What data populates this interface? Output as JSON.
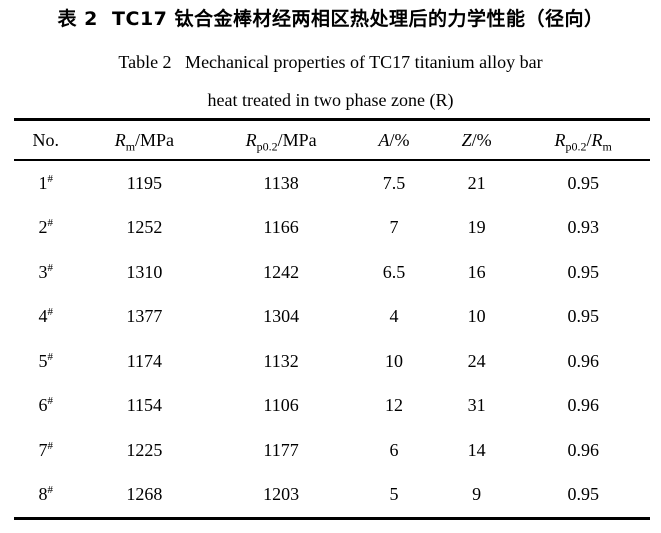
{
  "colors": {
    "background": "#ffffff",
    "text": "#000000",
    "rule": "#000000"
  },
  "caption": {
    "title_zh": "表 2  TC17 钛合金棒材经两相区热处理后的力学性能（径向）",
    "title_en_line1": "Table 2   Mechanical properties of TC17 titanium alloy bar",
    "title_en_line2": "heat treated in two phase zone (R)"
  },
  "table": {
    "header": {
      "no": "No.",
      "rm": {
        "sym": "R",
        "sub": "m",
        "unit": "/MPa"
      },
      "rp02": {
        "sym": "R",
        "sub": "p0.2",
        "unit": "/MPa"
      },
      "a": {
        "sym": "A",
        "unit": "/%"
      },
      "z": {
        "sym": "Z",
        "unit": "/%"
      },
      "ratio": {
        "sym1": "R",
        "sub1": "p0.2",
        "sep": "/",
        "sym2": "R",
        "sub2": "m"
      }
    },
    "rows": [
      {
        "no": "1",
        "mark": "#",
        "rm": "1195",
        "rp02": "1138",
        "a": "7.5",
        "z": "21",
        "ratio": "0.95"
      },
      {
        "no": "2",
        "mark": "#",
        "rm": "1252",
        "rp02": "1166",
        "a": "7",
        "z": "19",
        "ratio": "0.93"
      },
      {
        "no": "3",
        "mark": "#",
        "rm": "1310",
        "rp02": "1242",
        "a": "6.5",
        "z": "16",
        "ratio": "0.95"
      },
      {
        "no": "4",
        "mark": "#",
        "rm": "1377",
        "rp02": "1304",
        "a": "4",
        "z": "10",
        "ratio": "0.95"
      },
      {
        "no": "5",
        "mark": "#",
        "rm": "1174",
        "rp02": "1132",
        "a": "10",
        "z": "24",
        "ratio": "0.96"
      },
      {
        "no": "6",
        "mark": "#",
        "rm": "1154",
        "rp02": "1106",
        "a": "12",
        "z": "31",
        "ratio": "0.96"
      },
      {
        "no": "7",
        "mark": "#",
        "rm": "1225",
        "rp02": "1177",
        "a": "6",
        "z": "14",
        "ratio": "0.96"
      },
      {
        "no": "8",
        "mark": "#",
        "rm": "1268",
        "rp02": "1203",
        "a": "5",
        "z": "9",
        "ratio": "0.95"
      }
    ]
  }
}
